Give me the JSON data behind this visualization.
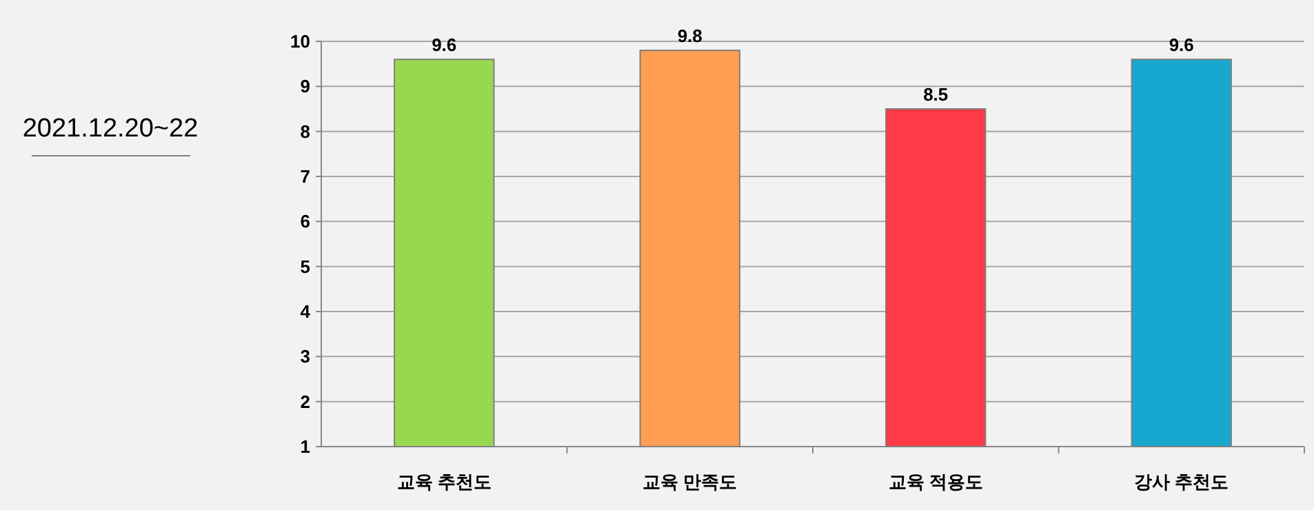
{
  "chart_data": {
    "type": "bar",
    "categories": [
      "교육 추천도",
      "교육 만족도",
      "교육 적용도",
      "강사 추천도"
    ],
    "values": [
      9.6,
      9.8,
      8.5,
      9.6
    ],
    "colors": [
      "#98d850",
      "#ff9e52",
      "#fd3a45",
      "#18a8cf"
    ],
    "ylim": [
      1,
      10
    ],
    "yticks": [
      1,
      2,
      3,
      4,
      5,
      6,
      7,
      8,
      9,
      10
    ],
    "grid": "y",
    "data_labels": true,
    "annotations": [
      "2021.12.20~22"
    ]
  }
}
